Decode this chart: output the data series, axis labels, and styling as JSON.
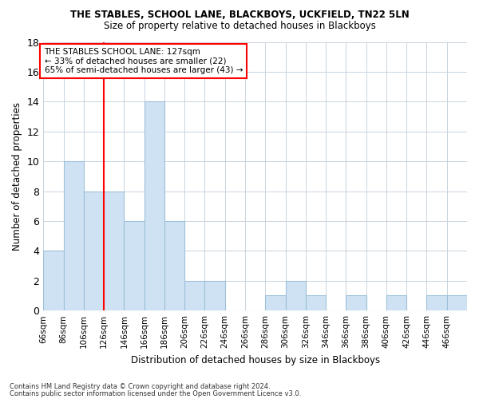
{
  "title": "THE STABLES, SCHOOL LANE, BLACKBOYS, UCKFIELD, TN22 5LN",
  "subtitle": "Size of property relative to detached houses in Blackboys",
  "xlabel": "Distribution of detached houses by size in Blackboys",
  "ylabel": "Number of detached properties",
  "bar_color": "#cfe2f3",
  "bar_edge_color": "#9dbfd8",
  "grid_color": "#c8d4e0",
  "bg_color": "#ffffff",
  "red_line_x": 126,
  "bin_edges": [
    66,
    86,
    106,
    126,
    146,
    166,
    186,
    206,
    226,
    246,
    266,
    286,
    306,
    326,
    346,
    366,
    386,
    406,
    426,
    446,
    466,
    486
  ],
  "values": [
    4,
    10,
    8,
    8,
    6,
    14,
    6,
    2,
    2,
    0,
    0,
    1,
    2,
    1,
    0,
    1,
    0,
    1,
    0,
    1,
    1
  ],
  "bin_width": 20,
  "ylim": [
    0,
    18
  ],
  "yticks": [
    0,
    2,
    4,
    6,
    8,
    10,
    12,
    14,
    16,
    18
  ],
  "annotation_text": "THE STABLES SCHOOL LANE: 127sqm\n← 33% of detached houses are smaller (22)\n65% of semi-detached houses are larger (43) →",
  "footer1": "Contains HM Land Registry data © Crown copyright and database right 2024.",
  "footer2": "Contains public sector information licensed under the Open Government Licence v3.0."
}
